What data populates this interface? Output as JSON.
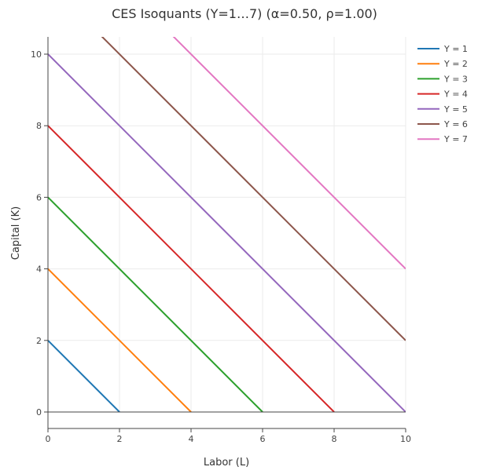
{
  "chart_data": {
    "type": "line",
    "title": "CES Isoquants (Y=1…7) (α=0.50, ρ=1.00)",
    "xlabel": "Labor (L)",
    "ylabel": "Capital (K)",
    "xlim": [
      0,
      10
    ],
    "ylim": [
      0,
      10.5
    ],
    "x_ticks": [
      0,
      2,
      4,
      6,
      8,
      10
    ],
    "y_ticks": [
      0,
      2,
      4,
      6,
      8,
      10
    ],
    "grid": true,
    "legend_position": "top-right",
    "series": [
      {
        "name": "Y = 1",
        "color": "#1f77b4",
        "points": [
          [
            0,
            2
          ],
          [
            2,
            0
          ]
        ]
      },
      {
        "name": "Y = 2",
        "color": "#ff7f0e",
        "points": [
          [
            0,
            4
          ],
          [
            4,
            0
          ]
        ]
      },
      {
        "name": "Y = 3",
        "color": "#2ca02c",
        "points": [
          [
            0,
            6
          ],
          [
            6,
            0
          ]
        ]
      },
      {
        "name": "Y = 4",
        "color": "#d62728",
        "points": [
          [
            0,
            8
          ],
          [
            8,
            0
          ]
        ]
      },
      {
        "name": "Y = 5",
        "color": "#9467bd",
        "points": [
          [
            0,
            10
          ],
          [
            10,
            0
          ]
        ]
      },
      {
        "name": "Y = 6",
        "color": "#8c564b",
        "points": [
          [
            1.5,
            10.5
          ],
          [
            10,
            2
          ]
        ]
      },
      {
        "name": "Y = 7",
        "color": "#e377c2",
        "points": [
          [
            3.5,
            10.5
          ],
          [
            10,
            4
          ]
        ]
      }
    ]
  }
}
